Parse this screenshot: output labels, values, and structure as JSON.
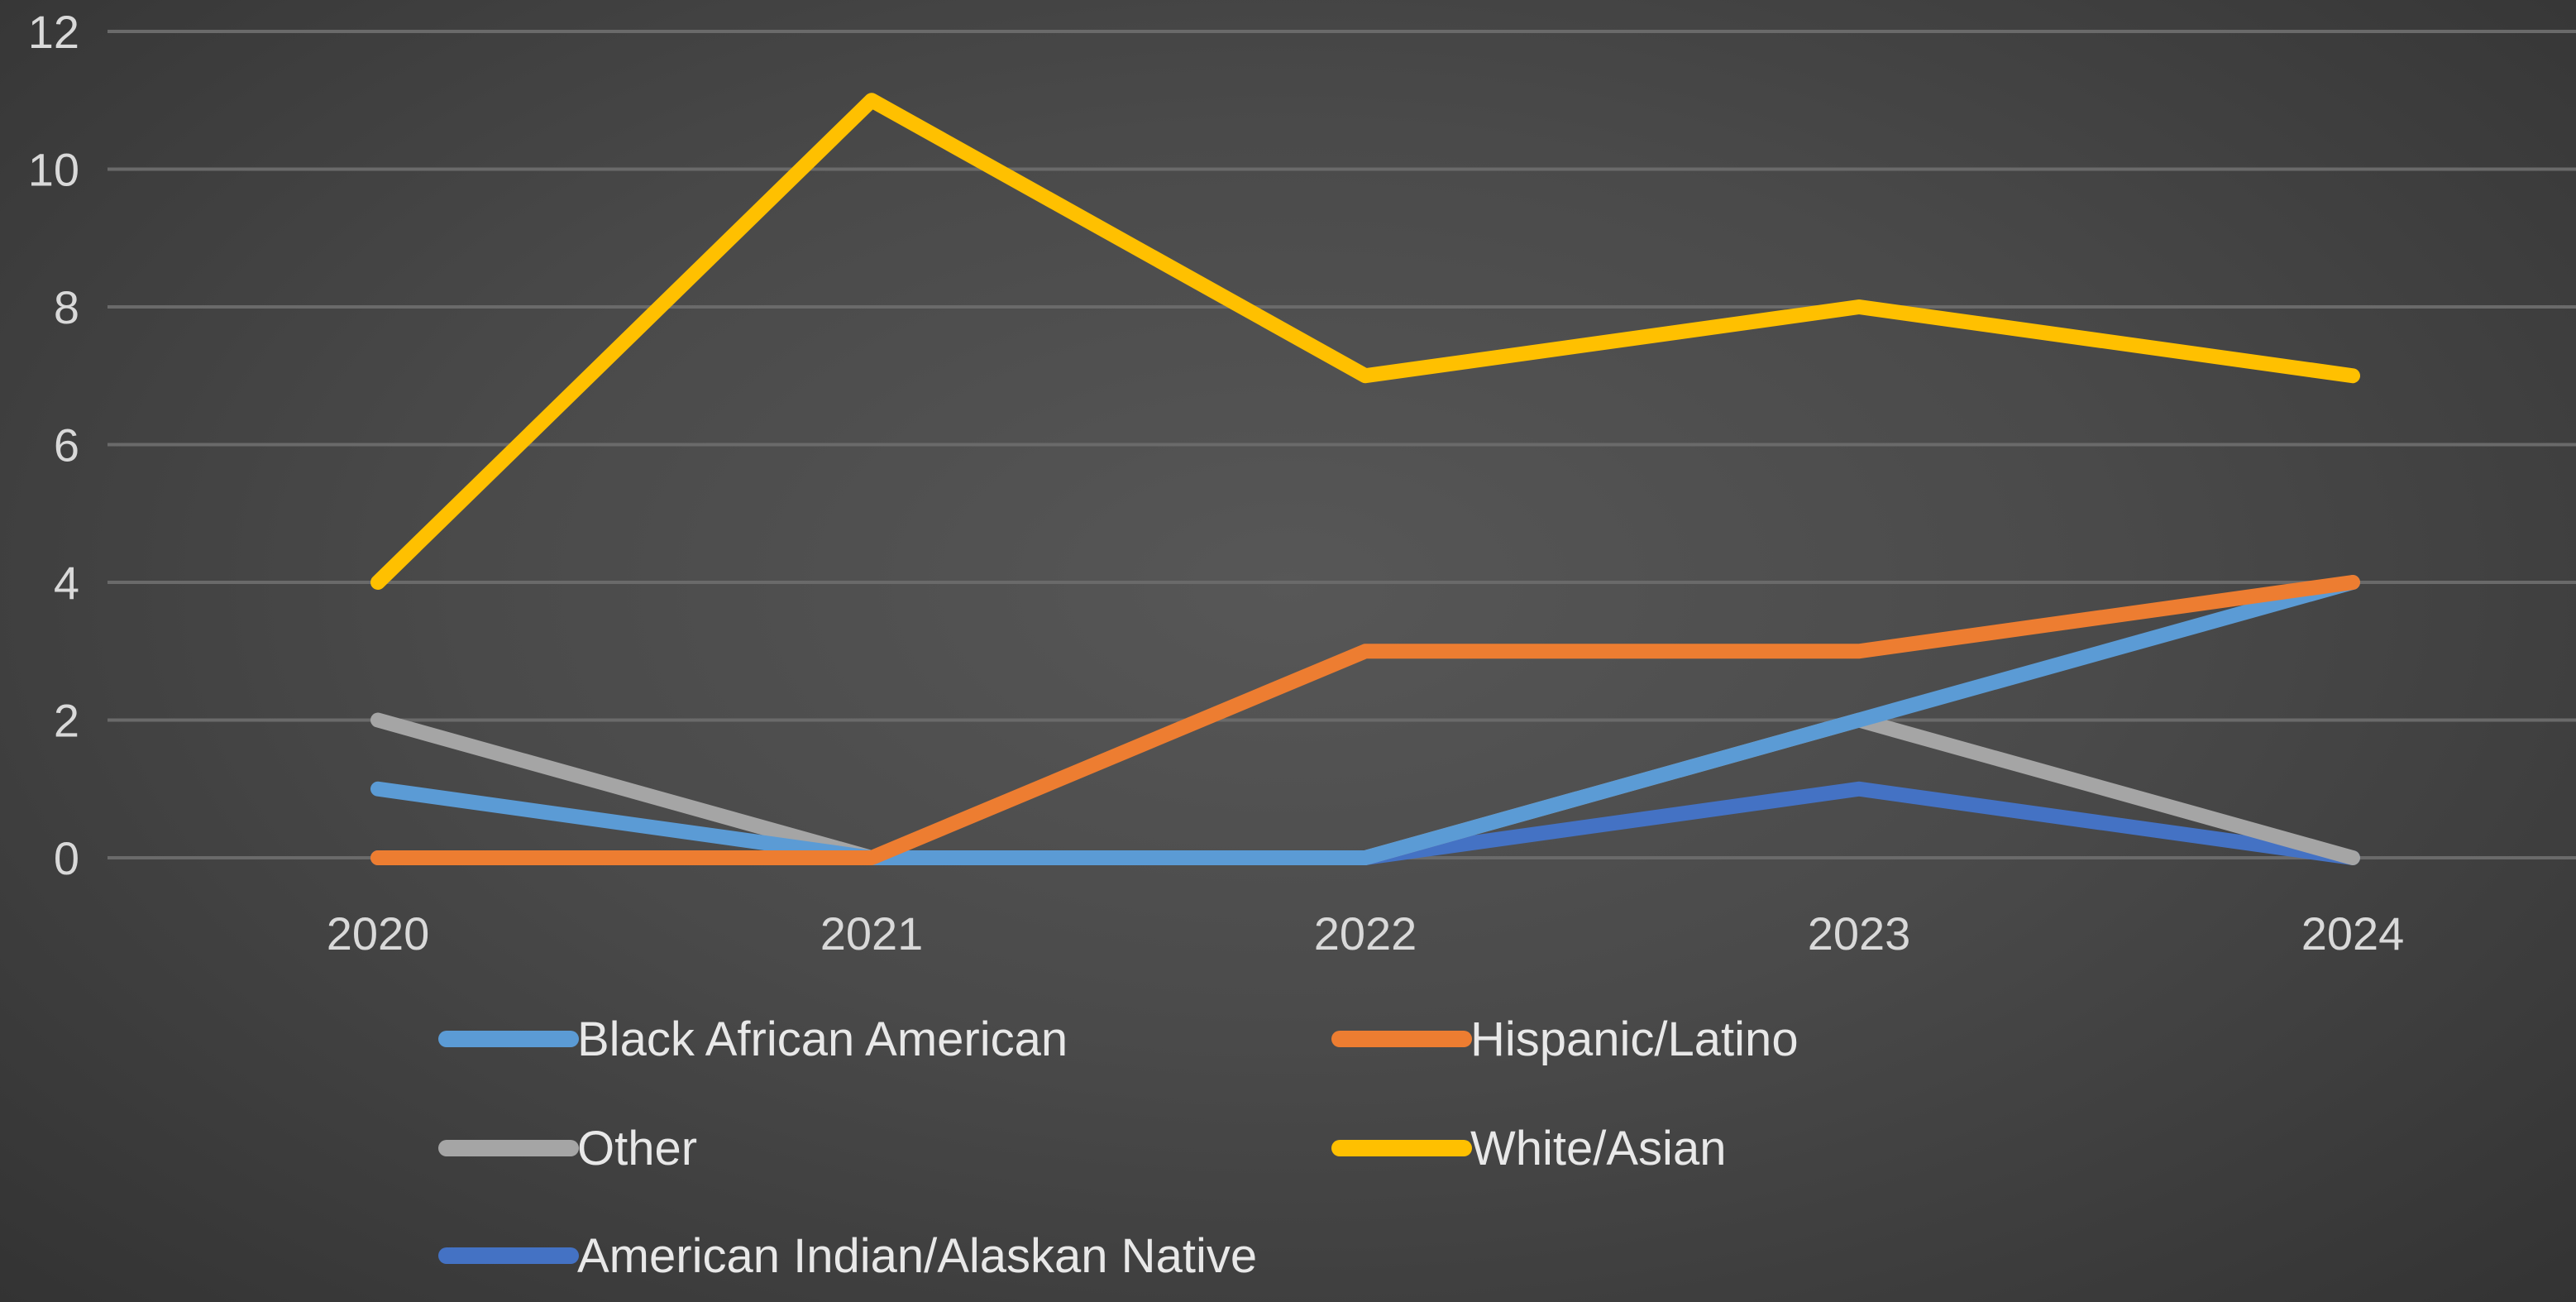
{
  "chart_data": {
    "type": "line",
    "title": "",
    "xlabel": "",
    "ylabel": "",
    "categories": [
      "2020",
      "2021",
      "2022",
      "2023",
      "2024"
    ],
    "ylim": [
      0,
      12
    ],
    "y_ticks": [
      "0",
      "2",
      "4",
      "6",
      "8",
      "10",
      "12"
    ],
    "grid": true,
    "legend_position": "bottom",
    "background": "#4a4a4a",
    "series": [
      {
        "name": "Black African American",
        "color": "#5b9bd5",
        "values": [
          1,
          0,
          0,
          2,
          4
        ]
      },
      {
        "name": "Hispanic/Latino",
        "color": "#ed7d31",
        "values": [
          0,
          0,
          3,
          3,
          4
        ]
      },
      {
        "name": "Other",
        "color": "#a5a5a5",
        "values": [
          2,
          0,
          0,
          2,
          0
        ]
      },
      {
        "name": "White/Asian",
        "color": "#ffc000",
        "values": [
          4,
          11,
          7,
          8,
          7
        ]
      },
      {
        "name": "American Indian/Alaskan Native",
        "color": "#4472c4",
        "values": [
          0,
          0,
          0,
          1,
          0
        ]
      }
    ]
  }
}
